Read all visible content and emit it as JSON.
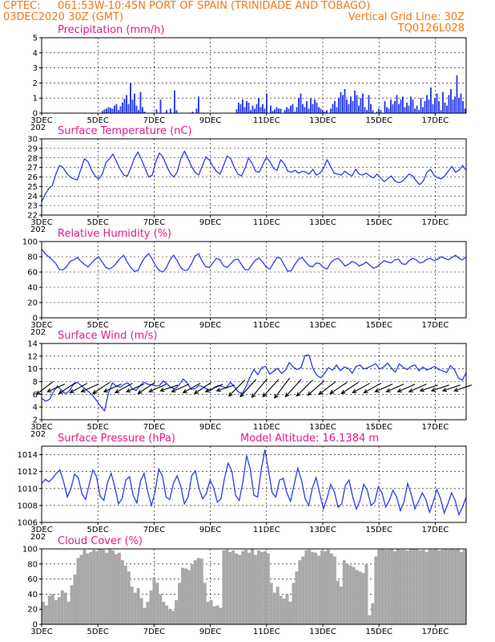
{
  "header": {
    "source": "CPTEC:",
    "location": "061:53W-10:45N   PORT OF SPAIN (TRINIDADE AND TOBAGO)",
    "datetime": "03DEC2020 30Z (GMT)",
    "grid_line": "Vertical Grid Line: 30Z",
    "model_code": "TQ0126L028"
  },
  "x_tick_labels": [
    "3DEC",
    "5DEC",
    "7DEC",
    "9DEC",
    "11DEC",
    "13DEC",
    "15DEC",
    "17DEC"
  ],
  "x_tick_days": [
    3,
    5,
    7,
    9,
    11,
    13,
    15,
    17
  ],
  "x_range_days": [
    3,
    18.1
  ],
  "year_fragment": "202",
  "colors": {
    "header": "#f07818",
    "title": "#e8188c",
    "line": "#2a3df0",
    "cloud": "#a8a8a8",
    "wind_arrow": "#000000"
  },
  "chart_data": [
    {
      "id": "precip",
      "type": "bar",
      "title": "Precipitation (mm/h)",
      "ylim": [
        0,
        5
      ],
      "yticks": [
        0,
        1,
        2,
        3,
        4,
        5
      ],
      "values": [
        0,
        0,
        0,
        0,
        0,
        0,
        0,
        0,
        0,
        0,
        0,
        0,
        0,
        0,
        0,
        0,
        0,
        0,
        0,
        0,
        0,
        0,
        0,
        0,
        0,
        0,
        0,
        0,
        0,
        0,
        0.15,
        0.25,
        0.3,
        0.4,
        0.35,
        0.3,
        0.5,
        0.6,
        0.2,
        0.45,
        0.7,
        0.95,
        1.2,
        0.6,
        2.0,
        0.9,
        1.3,
        0.5,
        0.2,
        1.4,
        0.4,
        0.1,
        0,
        0,
        0,
        0,
        0,
        0.25,
        0,
        0.9,
        0,
        0,
        0.2,
        0,
        0.3,
        0,
        1.5,
        0.2,
        0,
        0,
        0,
        0,
        0,
        0,
        0,
        0.1,
        0,
        0.3,
        1.1,
        0,
        0,
        0,
        0,
        0,
        0,
        0,
        0,
        0,
        0,
        0,
        0,
        0,
        0,
        0,
        0,
        0,
        0,
        0.25,
        0.7,
        0.6,
        0.9,
        0.4,
        0.8,
        0.7,
        0.2,
        0.5,
        0.3,
        0.6,
        1.0,
        0.4,
        0.6,
        0.3,
        1.3,
        0,
        0.5,
        0.15,
        0.25,
        0.4,
        0.3,
        0.3,
        0,
        0.2,
        0.4,
        0.3,
        0.5,
        0.6,
        0.1,
        0.4,
        1.0,
        1.3,
        0.6,
        0.4,
        0.8,
        0.3,
        1.0,
        0.6,
        0.9,
        0.7,
        0.4,
        0.3,
        0.2,
        0.1,
        0.2,
        0,
        0.3,
        0.6,
        0.8,
        0.4,
        1.0,
        1.4,
        1.2,
        1.6,
        0.9,
        0.6,
        1.1,
        0.8,
        1.5,
        1.2,
        0.5,
        1.0,
        1.3,
        0.4,
        0.2,
        1.2,
        0.6,
        0.2,
        0,
        0.1,
        0.3,
        0.2,
        0,
        0.8,
        0.4,
        0.3,
        0.9,
        0.6,
        0.8,
        1.2,
        0.6,
        0.9,
        1.1,
        0.4,
        0.7,
        0.5,
        1.1,
        0.9,
        0.3,
        0.5,
        0.2,
        1.0,
        0.4,
        0.8,
        1.2,
        0.9,
        1.7,
        0.6,
        1.0,
        1.3,
        0.8,
        0.2,
        1.4,
        0.7,
        0.5,
        1.2,
        1.6,
        0.9,
        1.1,
        2.5,
        1.0,
        1.3,
        0.8,
        0.3
      ]
    },
    {
      "id": "temp",
      "type": "line",
      "title": "Surface Temperature (nC)",
      "ylim": [
        22,
        30
      ],
      "yticks": [
        22,
        23,
        24,
        25,
        26,
        27,
        28,
        29,
        30
      ],
      "values": [
        23.4,
        24.2,
        24.8,
        25.1,
        26.3,
        27.2,
        27.0,
        26.4,
        26.0,
        25.8,
        25.7,
        26.8,
        27.9,
        27.6,
        26.7,
        26.1,
        25.8,
        26.3,
        27.5,
        27.9,
        28.4,
        27.6,
        26.8,
        26.2,
        26.1,
        26.9,
        28.0,
        28.6,
        27.8,
        26.9,
        26.0,
        26.2,
        27.6,
        28.5,
        28.1,
        27.2,
        26.4,
        26.0,
        26.5,
        27.9,
        28.7,
        28.0,
        27.1,
        26.5,
        26.2,
        27.1,
        28.1,
        27.8,
        27.1,
        26.6,
        26.3,
        27.2,
        28.2,
        27.9,
        27.0,
        26.3,
        26.1,
        26.9,
        28.0,
        27.4,
        26.6,
        26.5,
        27.3,
        28.1,
        27.6,
        26.9,
        26.7,
        27.8,
        27.4,
        26.6,
        26.5,
        26.7,
        26.4,
        26.6,
        26.5,
        26.3,
        26.8,
        26.2,
        26.4,
        26.9,
        27.8,
        27.1,
        26.4,
        26.3,
        26.2,
        26.6,
        26.3,
        26.1,
        26.8,
        26.3,
        26.2,
        26.4,
        26.1,
        25.9,
        26.3,
        25.9,
        25.5,
        25.8,
        26.1,
        25.6,
        25.4,
        25.5,
        25.9,
        26.3,
        26.1,
        25.6,
        25.2,
        25.6,
        26.5,
        26.8,
        26.2,
        25.9,
        25.8,
        26.1,
        26.6,
        27.1,
        26.5,
        26.7,
        27.2,
        26.7
      ]
    },
    {
      "id": "rh",
      "type": "line",
      "title": "Relative Humidity (%)",
      "ylim": [
        0,
        100
      ],
      "yticks": [
        0,
        20,
        40,
        60,
        80,
        100
      ],
      "values": [
        90,
        84,
        80,
        76,
        71,
        63,
        63,
        67,
        74,
        76,
        79,
        74,
        70,
        67,
        72,
        77,
        80,
        73,
        66,
        64,
        67,
        72,
        78,
        82,
        73,
        66,
        61,
        62,
        72,
        80,
        84,
        77,
        68,
        62,
        60,
        66,
        76,
        82,
        75,
        66,
        62,
        63,
        71,
        81,
        84,
        74,
        67,
        66,
        72,
        78,
        76,
        68,
        66,
        71,
        76,
        77,
        70,
        63,
        63,
        70,
        76,
        78,
        73,
        66,
        64,
        72,
        79,
        78,
        69,
        61,
        62,
        70,
        77,
        79,
        73,
        68,
        67,
        72,
        71,
        66,
        64,
        72,
        76,
        78,
        74,
        68,
        70,
        74,
        72,
        68,
        70,
        73,
        69,
        65,
        67,
        71,
        75,
        73,
        72,
        76,
        77,
        71,
        70,
        75,
        78,
        76,
        72,
        73,
        77,
        78,
        75,
        77,
        80,
        78,
        76,
        79,
        82,
        78,
        76,
        80
      ]
    },
    {
      "id": "wind",
      "type": "line",
      "title": "Surface Wind (m/s)",
      "ylim": [
        2,
        14
      ],
      "yticks": [
        2,
        4,
        6,
        8,
        10,
        12,
        14
      ],
      "values": [
        5.4,
        4.9,
        5.2,
        6.4,
        7.3,
        6.7,
        6.1,
        6.5,
        7.5,
        7.9,
        7.4,
        6.9,
        6.4,
        5.8,
        5.0,
        4.1,
        3.4,
        6.2,
        7.8,
        7.3,
        7.1,
        7.6,
        7.8,
        6.9,
        6.6,
        7.3,
        7.9,
        7.6,
        7.5,
        7.3,
        7.4,
        8.1,
        7.6,
        7.0,
        6.9,
        7.5,
        8.4,
        7.8,
        6.8,
        6.9,
        7.4,
        7.2,
        6.8,
        6.6,
        7.1,
        7.4,
        7.2,
        7.0,
        7.9,
        7.2,
        6.4,
        6.1,
        7.2,
        8.7,
        9.9,
        9.1,
        10.2,
        10.4,
        9.2,
        9.6,
        10.1,
        9.3,
        9.8,
        11.0,
        10.3,
        9.9,
        10.2,
        12.1,
        12.2,
        10.1,
        9.0,
        8.6,
        9.3,
        10.2,
        9.8,
        10.6,
        9.7,
        10.3,
        10.1,
        9.3,
        10.4,
        10.6,
        10.0,
        10.2,
        10.5,
        10.8,
        10.0,
        10.3,
        10.9,
        10.1,
        9.5,
        10.8,
        10.2,
        9.9,
        10.4,
        10.6,
        9.7,
        10.3,
        9.8,
        10.1,
        10.4,
        9.9,
        9.7,
        9.4,
        10.5,
        9.9,
        8.6,
        8.2,
        9.4
      ]
    },
    {
      "id": "pres",
      "type": "line",
      "title": "Surface Pressure (hPa)",
      "subtitle": "Model Altitude: 16.1384 m",
      "ylim": [
        1006,
        1015
      ],
      "yticks": [
        1006,
        1008,
        1010,
        1012,
        1014
      ],
      "values": [
        1010.6,
        1011.1,
        1010.8,
        1011.2,
        1011.8,
        1012.2,
        1010.8,
        1009.0,
        1010.0,
        1011.7,
        1011.3,
        1009.4,
        1008.7,
        1010.5,
        1012.2,
        1011.4,
        1009.1,
        1008.6,
        1010.7,
        1011.8,
        1010.2,
        1008.2,
        1008.8,
        1011.0,
        1011.4,
        1009.2,
        1008.3,
        1010.9,
        1011.8,
        1009.6,
        1008.0,
        1009.6,
        1012.3,
        1011.5,
        1009.0,
        1008.7,
        1010.6,
        1011.5,
        1010.3,
        1008.2,
        1009.0,
        1011.5,
        1012.1,
        1010.0,
        1008.8,
        1009.4,
        1011.0,
        1010.1,
        1008.4,
        1008.8,
        1011.3,
        1013.0,
        1012.0,
        1009.2,
        1008.6,
        1010.8,
        1013.9,
        1012.3,
        1009.2,
        1009.0,
        1012.2,
        1014.6,
        1012.1,
        1009.5,
        1009.0,
        1011.0,
        1011.2,
        1009.5,
        1008.5,
        1010.5,
        1012.4,
        1011.0,
        1008.8,
        1008.0,
        1010.1,
        1011.3,
        1009.4,
        1007.6,
        1008.9,
        1010.5,
        1009.6,
        1007.8,
        1008.2,
        1010.4,
        1011.0,
        1009.0,
        1007.6,
        1008.6,
        1010.5,
        1009.8,
        1008.0,
        1008.4,
        1010.2,
        1009.5,
        1007.8,
        1008.6,
        1009.8,
        1009.0,
        1007.4,
        1008.4,
        1010.6,
        1009.3,
        1007.6,
        1008.5,
        1009.5,
        1008.7,
        1007.2,
        1008.4,
        1009.9,
        1008.8,
        1007.1,
        1008.2,
        1009.5,
        1008.6,
        1006.9,
        1007.8,
        1009.0
      ]
    },
    {
      "id": "cloud",
      "type": "bar",
      "title": "Cloud Cover (%)",
      "ylim": [
        0,
        100
      ],
      "yticks": [
        0,
        20,
        40,
        60,
        80,
        100
      ],
      "values": [
        30,
        25,
        38,
        40,
        32,
        36,
        45,
        42,
        30,
        52,
        66,
        88,
        92,
        99,
        94,
        96,
        99,
        97,
        100,
        99,
        95,
        100,
        98,
        93,
        95,
        85,
        78,
        70,
        50,
        42,
        48,
        35,
        22,
        30,
        45,
        62,
        55,
        40,
        30,
        25,
        20,
        18,
        32,
        55,
        75,
        74,
        72,
        80,
        85,
        88,
        87,
        55,
        30,
        32,
        24,
        25,
        22,
        98,
        99,
        96,
        98,
        94,
        92,
        97,
        99,
        95,
        100,
        92,
        98,
        96,
        97,
        94,
        55,
        42,
        50,
        38,
        34,
        40,
        30,
        55,
        70,
        85,
        90,
        98,
        99,
        96,
        95,
        91,
        98,
        97,
        99,
        94,
        90,
        58,
        50,
        85,
        80,
        78,
        76,
        72,
        70,
        68,
        80,
        12,
        28,
        90,
        99,
        100,
        99,
        99,
        100,
        97,
        100,
        99,
        99,
        98,
        100,
        100,
        100,
        98,
        99,
        96,
        99,
        99,
        100,
        98,
        99,
        100,
        99,
        100,
        99,
        100,
        96,
        99
      ]
    }
  ],
  "wind_arrows": [
    {
      "dx": -1,
      "dy": -0.35
    },
    {
      "dx": -1,
      "dy": -0.2
    },
    {
      "dx": -1,
      "dy": -0.3
    },
    {
      "dx": -1,
      "dy": -0.25
    },
    {
      "dx": -1,
      "dy": -0.2
    },
    {
      "dx": -1,
      "dy": -0.3
    },
    {
      "dx": -1,
      "dy": -0.2
    },
    {
      "dx": -1,
      "dy": -0.25
    },
    {
      "dx": -1,
      "dy": -0.2
    },
    {
      "dx": -1,
      "dy": -0.3
    },
    {
      "dx": -1,
      "dy": -0.2
    },
    {
      "dx": -1,
      "dy": -0.15
    },
    {
      "dx": -1,
      "dy": -0.2
    },
    {
      "dx": -1,
      "dy": -0.25
    },
    {
      "dx": -1,
      "dy": -0.3
    },
    {
      "dx": -1,
      "dy": -0.2
    },
    {
      "dx": -1,
      "dy": -0.15
    },
    {
      "dx": -1,
      "dy": -0.45
    },
    {
      "dx": -1,
      "dy": -0.5
    },
    {
      "dx": -1,
      "dy": -0.55
    },
    {
      "dx": -1,
      "dy": -0.5
    },
    {
      "dx": -1,
      "dy": -0.6
    },
    {
      "dx": -1,
      "dy": -0.5
    },
    {
      "dx": -1,
      "dy": -0.45
    },
    {
      "dx": -1,
      "dy": -0.4
    },
    {
      "dx": -1,
      "dy": -0.35
    },
    {
      "dx": -1,
      "dy": -0.3
    },
    {
      "dx": -1,
      "dy": -0.3
    },
    {
      "dx": -1,
      "dy": -0.25
    },
    {
      "dx": -1,
      "dy": -0.25
    },
    {
      "dx": -1,
      "dy": -0.2
    },
    {
      "dx": -1,
      "dy": -0.2
    },
    {
      "dx": -1,
      "dy": -0.2
    },
    {
      "dx": -1,
      "dy": -0.2
    },
    {
      "dx": -1,
      "dy": -0.15
    },
    {
      "dx": -1,
      "dy": -0.15
    },
    {
      "dx": -1,
      "dy": -0.15
    },
    {
      "dx": -1,
      "dy": -0.15
    }
  ]
}
